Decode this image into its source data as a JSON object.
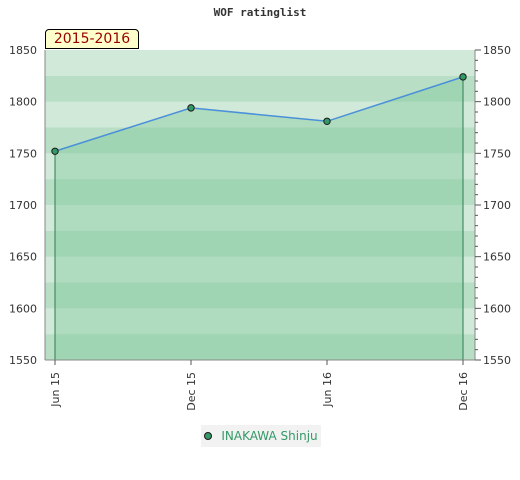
{
  "chart_data": {
    "type": "line",
    "title": "WOF ratinglist",
    "period_label": "2015-2016",
    "categories": [
      "Jun 15",
      "Dec 15",
      "Jun 16",
      "Dec 16"
    ],
    "series": [
      {
        "name": "INAKAWA Shinju",
        "values": [
          1752,
          1794,
          1781,
          1824
        ]
      }
    ],
    "ylim": [
      1550,
      1850
    ],
    "yticks": [
      1550,
      1600,
      1650,
      1700,
      1750,
      1800,
      1850
    ],
    "y_axis_sides": "left-and-right",
    "legend_position": "bottom-center",
    "grid": true,
    "colors": {
      "series_line": "#4a90d9",
      "series_marker": "#339966",
      "area_fill": "#7ec699",
      "band_dark": "#8ccca1",
      "band_light": "#b9dfc5"
    }
  }
}
